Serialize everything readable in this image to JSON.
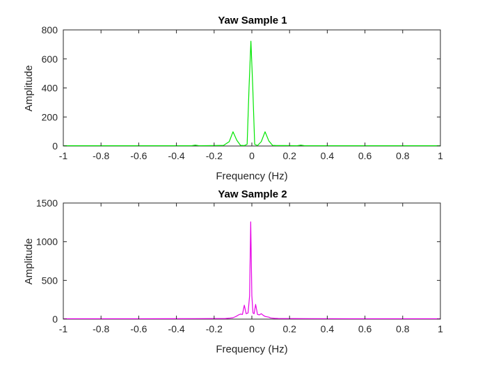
{
  "chart_data": [
    {
      "type": "line",
      "title": "Yaw Sample 1",
      "xlabel": "Frequency (Hz)",
      "ylabel": "Amplitude",
      "xlim": [
        -1,
        1
      ],
      "ylim": [
        0,
        800
      ],
      "xticks": [
        -1,
        -0.8,
        -0.6,
        -0.4,
        -0.2,
        0,
        0.2,
        0.4,
        0.6,
        0.8,
        1
      ],
      "xtick_labels": [
        "-1",
        "-0.8",
        "-0.6",
        "-0.4",
        "-0.2",
        "0",
        "0.2",
        "0.4",
        "0.6",
        "0.8",
        "1"
      ],
      "yticks": [
        0,
        200,
        400,
        600,
        800
      ],
      "ytick_labels": [
        "0",
        "200",
        "400",
        "600",
        "800"
      ],
      "grid": false,
      "series": [
        {
          "color": "#00e600",
          "x": [
            -1,
            -0.6,
            -0.4,
            -0.32,
            -0.3,
            -0.28,
            -0.2,
            -0.15,
            -0.12,
            -0.1,
            -0.08,
            -0.06,
            -0.04,
            -0.025,
            -0.015,
            -0.005,
            0.005,
            0.015,
            0.03,
            0.05,
            0.07,
            0.09,
            0.11,
            0.13,
            0.18,
            0.24,
            0.26,
            0.28,
            0.4,
            0.6,
            1
          ],
          "y": [
            2,
            2,
            2,
            2,
            6,
            2,
            3,
            4,
            30,
            98,
            40,
            4,
            3,
            12,
            400,
            722,
            400,
            12,
            3,
            30,
            98,
            35,
            4,
            3,
            3,
            2,
            6,
            2,
            2,
            2,
            2
          ]
        }
      ]
    },
    {
      "type": "line",
      "title": "Yaw Sample 2",
      "xlabel": "Frequency (Hz)",
      "ylabel": "Amplitude",
      "xlim": [
        -1,
        1
      ],
      "ylim": [
        0,
        1500
      ],
      "xticks": [
        -1,
        -0.8,
        -0.6,
        -0.4,
        -0.2,
        0,
        0.2,
        0.4,
        0.6,
        0.8,
        1
      ],
      "xtick_labels": [
        "-1",
        "-0.8",
        "-0.6",
        "-0.4",
        "-0.2",
        "0",
        "0.2",
        "0.4",
        "0.6",
        "0.8",
        "1"
      ],
      "yticks": [
        0,
        500,
        1000,
        1500
      ],
      "ytick_labels": [
        "0",
        "500",
        "1000",
        "1500"
      ],
      "grid": false,
      "series": [
        {
          "color": "#e600e6",
          "x": [
            -1,
            -0.6,
            -0.3,
            -0.14,
            -0.12,
            -0.1,
            -0.09,
            -0.08,
            -0.07,
            -0.06,
            -0.05,
            -0.04,
            -0.03,
            -0.02,
            -0.012,
            -0.006,
            0,
            0.006,
            0.012,
            0.02,
            0.03,
            0.04,
            0.05,
            0.06,
            0.07,
            0.08,
            0.09,
            0.1,
            0.12,
            0.14,
            0.3,
            0.6,
            1
          ],
          "y": [
            5,
            5,
            6,
            8,
            12,
            18,
            28,
            40,
            55,
            65,
            60,
            180,
            70,
            80,
            300,
            1257,
            300,
            80,
            70,
            190,
            60,
            55,
            70,
            50,
            35,
            30,
            25,
            15,
            10,
            8,
            6,
            5,
            5
          ]
        }
      ]
    }
  ]
}
